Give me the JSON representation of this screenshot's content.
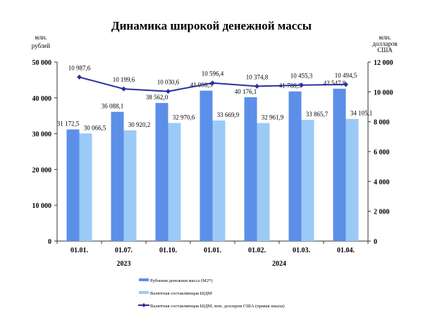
{
  "chart_data": {
    "type": "bar",
    "title": "Динамика широкой денежной массы",
    "ylabel_left": "млн. рублей",
    "ylabel_right": "млн. долларов США",
    "categories": [
      "01.01.",
      "01.07.",
      "01.10.",
      "01.01.",
      "01.02.",
      "01.03.",
      "01.04."
    ],
    "year_labels": [
      {
        "label": "2023",
        "categories": [
          0,
          2
        ]
      },
      {
        "label": "2024",
        "categories": [
          3,
          6
        ]
      }
    ],
    "ylim_left": [
      0,
      50000
    ],
    "yticks_left": [
      "0",
      "10 000",
      "20 000",
      "30 000",
      "40 000",
      "50 000"
    ],
    "ylim_right": [
      0,
      12000
    ],
    "yticks_right": [
      "0",
      "2 000",
      "4 000",
      "6 000",
      "8 000",
      "10 000",
      "12 000"
    ],
    "series": [
      {
        "name": "Рублевая денежная масса (М2*)",
        "type": "bar",
        "axis": "left",
        "color": "#5b8fe8",
        "values": [
          31172.5,
          36088.1,
          38562.0,
          41998.5,
          40176.1,
          41788.3,
          42547.8
        ],
        "labels": [
          "31 172,5",
          "36 088,1",
          "38 562,0",
          "41 998,5",
          "40 176,1",
          "41 788,3",
          "42 547,8"
        ]
      },
      {
        "name": "Валютная составляющая ШДМ",
        "type": "bar",
        "axis": "left",
        "color": "#9ccaf7",
        "values": [
          30066.5,
          30920.2,
          32970.6,
          33669.9,
          32961.9,
          33865.7,
          34105.1
        ],
        "labels": [
          "30 066,5",
          "30 920,2",
          "32 970,6",
          "33 669,9",
          "32 961,9",
          "33 865,7",
          "34 105,1"
        ]
      },
      {
        "name": "Валютная составляющая ШДМ, млн. долларов США (правая шкала)",
        "type": "line",
        "axis": "right",
        "color": "#2b2f9e",
        "values": [
          10987.6,
          10199.6,
          10030.6,
          10596.4,
          10374.8,
          10455.3,
          10494.5
        ],
        "labels": [
          "10 987,6",
          "10 199,6",
          "10 030,6",
          "10 596,4",
          "10 374,8",
          "10 455,3",
          "10 494,5"
        ]
      }
    ],
    "grid": false,
    "legend": "bottom"
  }
}
